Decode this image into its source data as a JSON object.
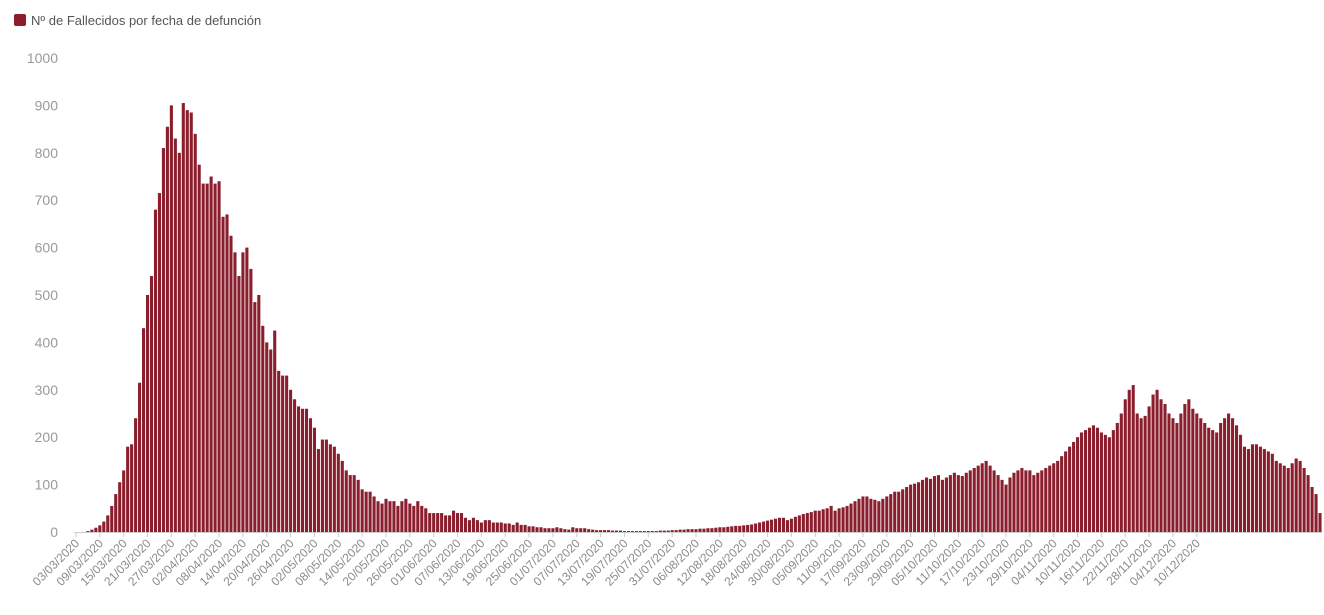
{
  "legend": {
    "label": "Nº de Fallecidos por fecha de defunción",
    "color": "#8b1e2d"
  },
  "chart_data": {
    "type": "bar",
    "series": [
      {
        "name": "Nº de Fallecidos por fecha de defunción",
        "color": "#8b1e2d"
      }
    ],
    "ylim": [
      0,
      1000
    ],
    "yticks": [
      0,
      100,
      200,
      300,
      400,
      500,
      600,
      700,
      800,
      900,
      1000
    ],
    "grid": false,
    "legend_position": "top-left",
    "x_start": "03/03/2020",
    "x_end": "15/12/2020",
    "x_tick_labels": [
      "03/03/2020",
      "09/03/2020",
      "15/03/2020",
      "21/03/2020",
      "27/03/2020",
      "02/04/2020",
      "08/04/2020",
      "14/04/2020",
      "20/04/2020",
      "26/04/2020",
      "02/05/2020",
      "08/05/2020",
      "14/05/2020",
      "20/05/2020",
      "26/05/2020",
      "01/06/2020",
      "07/06/2020",
      "13/06/2020",
      "19/06/2020",
      "25/06/2020",
      "01/07/2020",
      "07/07/2020",
      "13/07/2020",
      "19/07/2020",
      "25/07/2020",
      "31/07/2020",
      "06/08/2020",
      "12/08/2020",
      "18/08/2020",
      "24/08/2020",
      "30/08/2020",
      "05/09/2020",
      "11/09/2020",
      "17/09/2020",
      "23/09/2020",
      "29/09/2020",
      "05/10/2020",
      "11/10/2020",
      "17/10/2020",
      "23/10/2020",
      "29/10/2020",
      "04/11/2020",
      "10/11/2020",
      "16/11/2020",
      "22/11/2020",
      "28/11/2020",
      "04/12/2020",
      "10/12/2020"
    ],
    "values": [
      0,
      0,
      0,
      2,
      5,
      9,
      14,
      22,
      35,
      55,
      80,
      105,
      130,
      180,
      185,
      240,
      315,
      430,
      500,
      540,
      680,
      715,
      810,
      855,
      900,
      830,
      800,
      905,
      890,
      885,
      840,
      775,
      735,
      735,
      750,
      735,
      740,
      665,
      670,
      625,
      590,
      540,
      590,
      600,
      555,
      485,
      500,
      435,
      400,
      385,
      425,
      340,
      330,
      330,
      300,
      280,
      265,
      260,
      260,
      240,
      220,
      175,
      195,
      195,
      185,
      180,
      165,
      150,
      130,
      120,
      120,
      110,
      90,
      85,
      85,
      75,
      65,
      60,
      70,
      65,
      65,
      55,
      65,
      70,
      60,
      55,
      65,
      55,
      50,
      40,
      40,
      40,
      40,
      35,
      35,
      45,
      40,
      40,
      30,
      25,
      30,
      25,
      20,
      25,
      25,
      20,
      20,
      20,
      18,
      18,
      15,
      20,
      15,
      15,
      12,
      12,
      10,
      10,
      8,
      8,
      8,
      10,
      8,
      6,
      5,
      10,
      8,
      8,
      8,
      6,
      5,
      4,
      4,
      4,
      4,
      3,
      3,
      3,
      2,
      2,
      2,
      2,
      2,
      2,
      2,
      2,
      2,
      3,
      3,
      3,
      4,
      4,
      5,
      5,
      6,
      6,
      6,
      7,
      7,
      8,
      8,
      9,
      10,
      10,
      11,
      12,
      13,
      13,
      14,
      15,
      16,
      18,
      20,
      22,
      24,
      26,
      28,
      30,
      30,
      25,
      28,
      32,
      35,
      38,
      40,
      42,
      45,
      45,
      48,
      50,
      55,
      45,
      50,
      52,
      55,
      60,
      65,
      70,
      75,
      75,
      70,
      68,
      65,
      70,
      75,
      80,
      85,
      85,
      90,
      95,
      100,
      102,
      105,
      110,
      115,
      112,
      118,
      120,
      110,
      115,
      120,
      125,
      120,
      118,
      125,
      130,
      135,
      140,
      145,
      150,
      140,
      130,
      120,
      110,
      100,
      115,
      125,
      130,
      135,
      130,
      130,
      120,
      125,
      130,
      135,
      140,
      145,
      150,
      160,
      170,
      180,
      190,
      200,
      210,
      215,
      220,
      225,
      220,
      210,
      205,
      200,
      215,
      230,
      250,
      280,
      300,
      310,
      250,
      240,
      245,
      265,
      290,
      300,
      280,
      270,
      250,
      240,
      230,
      250,
      270,
      280,
      260,
      250,
      240,
      230,
      220,
      215,
      210,
      230,
      240,
      250,
      240,
      225,
      205,
      180,
      175,
      185,
      185,
      180,
      175,
      170,
      165,
      150,
      145,
      140,
      135,
      145,
      155,
      150,
      135,
      120,
      95,
      80,
      40
    ]
  }
}
